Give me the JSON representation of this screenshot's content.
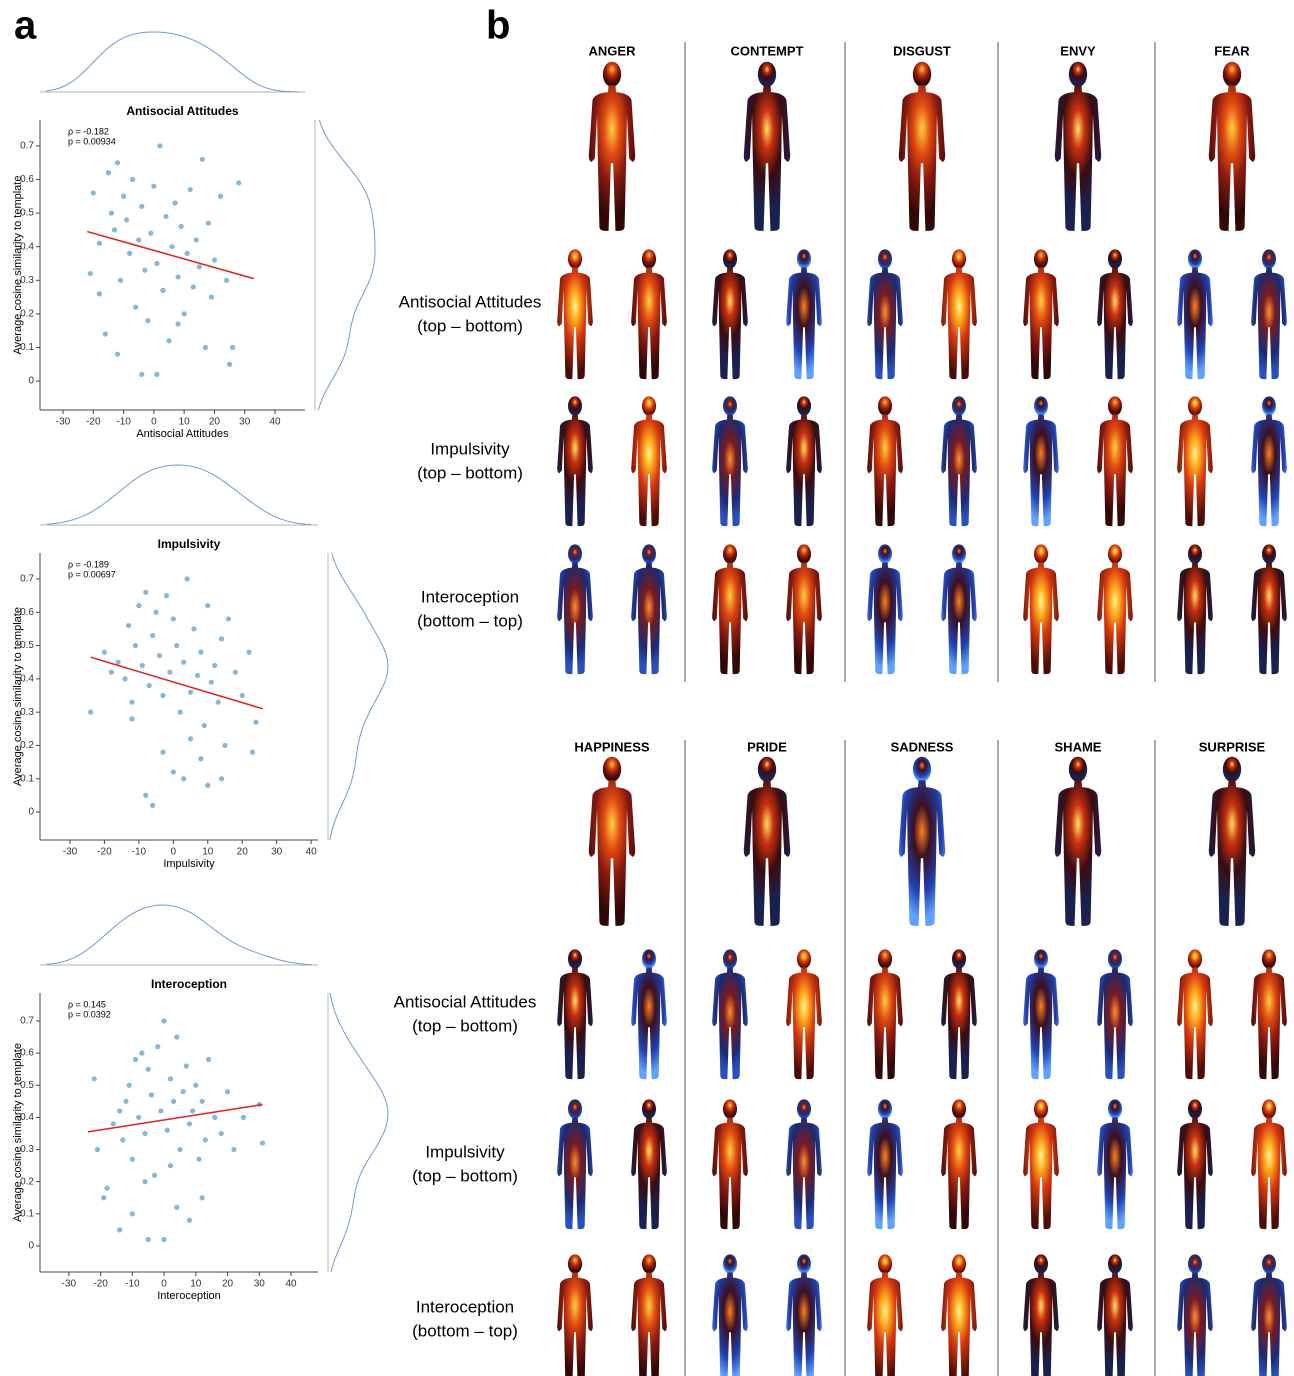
{
  "panel_a": {
    "label": "a"
  },
  "chart_data": [
    {
      "type": "scatter",
      "title": "Antisocial Attitudes",
      "x_label": "Antisocial Attitudes",
      "y_label": "Average cosine similarity to template",
      "annotations": [
        "ρ = -0.182",
        "p = 0.00934"
      ],
      "x": [
        -20,
        -18,
        -15,
        -14,
        -13,
        -12,
        -11,
        -10,
        -9,
        -8,
        -7,
        -6,
        -5,
        -4,
        -3,
        -2,
        -1,
        0,
        1,
        2,
        3,
        4,
        5,
        6,
        7,
        8,
        9,
        10,
        11,
        12,
        13,
        14,
        15,
        16,
        17,
        18,
        19,
        20,
        22,
        24,
        25,
        26,
        28,
        -16,
        -12,
        -4,
        1,
        -18,
        -21,
        8
      ],
      "y": [
        0.56,
        0.41,
        0.62,
        0.5,
        0.45,
        0.65,
        0.3,
        0.55,
        0.48,
        0.38,
        0.6,
        0.22,
        0.42,
        0.52,
        0.33,
        0.18,
        0.44,
        0.58,
        0.35,
        0.7,
        0.27,
        0.49,
        0.12,
        0.4,
        0.53,
        0.31,
        0.46,
        0.2,
        0.38,
        0.57,
        0.28,
        0.42,
        0.34,
        0.66,
        0.1,
        0.47,
        0.25,
        0.36,
        0.55,
        0.3,
        0.05,
        0.1,
        0.59,
        0.14,
        0.08,
        0.02,
        0.02,
        0.26,
        0.32,
        0.17
      ],
      "color": "#86b6d8",
      "fit_line": {
        "x": [
          -22,
          33
        ],
        "y": [
          0.445,
          0.305
        ],
        "color": "#e0201c"
      },
      "xlim": [
        -37.6,
        49.9
      ],
      "ylim": [
        -0.086,
        0.777
      ],
      "xticks": [
        -30,
        -20,
        -10,
        0,
        10,
        20,
        30,
        40
      ],
      "yticks": [
        0,
        0.1,
        0.2,
        0.3,
        0.4,
        0.5,
        0.6,
        0.7
      ]
    },
    {
      "type": "scatter",
      "title": "Impulsivity",
      "x_label": "Impulsivity",
      "y_label": "Average cosine similarity to template",
      "annotations": [
        "ρ = -0.189",
        "p = 0.00697"
      ],
      "x": [
        -24,
        -20,
        -18,
        -16,
        -14,
        -13,
        -12,
        -11,
        -10,
        -9,
        -8,
        -7,
        -6,
        -5,
        -4,
        -3,
        -2,
        -1,
        0,
        1,
        2,
        3,
        4,
        5,
        6,
        7,
        8,
        9,
        10,
        11,
        12,
        13,
        14,
        15,
        16,
        18,
        20,
        22,
        23,
        24,
        -8,
        -6,
        -3,
        0,
        3,
        5,
        8,
        10,
        -12,
        14
      ],
      "y": [
        0.3,
        0.48,
        0.42,
        0.45,
        0.4,
        0.56,
        0.33,
        0.5,
        0.62,
        0.44,
        0.66,
        0.38,
        0.53,
        0.6,
        0.47,
        0.35,
        0.65,
        0.42,
        0.58,
        0.5,
        0.3,
        0.45,
        0.7,
        0.36,
        0.55,
        0.41,
        0.48,
        0.26,
        0.62,
        0.39,
        0.44,
        0.33,
        0.52,
        0.2,
        0.58,
        0.42,
        0.35,
        0.48,
        0.18,
        0.27,
        0.05,
        0.02,
        0.18,
        0.12,
        0.1,
        0.22,
        0.16,
        0.08,
        0.28,
        0.1
      ],
      "color": "#86b6d8",
      "fit_line": {
        "x": [
          -24,
          26
        ],
        "y": [
          0.465,
          0.31
        ],
        "color": "#e0201c"
      },
      "xlim": [
        -38.7,
        42.0
      ],
      "ylim": [
        -0.084,
        0.778
      ],
      "xticks": [
        -30,
        -20,
        -10,
        0,
        10,
        20,
        30,
        40
      ],
      "yticks": [
        0,
        0.1,
        0.2,
        0.3,
        0.4,
        0.5,
        0.6,
        0.7
      ]
    },
    {
      "type": "scatter",
      "title": "Interoception",
      "x_label": "Interoception",
      "y_label": "Average cosine similarity to template",
      "annotations": [
        "ρ = 0.145",
        "p = 0.0392"
      ],
      "x": [
        -22,
        -21,
        -19,
        -18,
        -16,
        -14,
        -13,
        -12,
        -11,
        -10,
        -9,
        -8,
        -7,
        -6,
        -5,
        -4,
        -3,
        -2,
        -1,
        0,
        1,
        2,
        3,
        4,
        5,
        6,
        7,
        8,
        9,
        10,
        11,
        12,
        13,
        14,
        16,
        18,
        20,
        22,
        25,
        30,
        31,
        -14,
        -10,
        -5,
        0,
        4,
        8,
        12,
        -6,
        2
      ],
      "y": [
        0.52,
        0.3,
        0.15,
        0.18,
        0.38,
        0.42,
        0.33,
        0.45,
        0.5,
        0.27,
        0.58,
        0.4,
        0.6,
        0.35,
        0.55,
        0.47,
        0.22,
        0.62,
        0.42,
        0.7,
        0.36,
        0.52,
        0.45,
        0.65,
        0.3,
        0.48,
        0.56,
        0.38,
        0.42,
        0.5,
        0.27,
        0.45,
        0.33,
        0.58,
        0.4,
        0.35,
        0.48,
        0.3,
        0.4,
        0.44,
        0.32,
        0.05,
        0.1,
        0.02,
        0.02,
        0.12,
        0.08,
        0.15,
        0.2,
        0.25
      ],
      "color": "#86b6d8",
      "fit_line": {
        "x": [
          -24,
          31
        ],
        "y": [
          0.355,
          0.44
        ],
        "color": "#e0201c"
      },
      "xlim": [
        -39.1,
        48.5
      ],
      "ylim": [
        -0.081,
        0.787
      ],
      "xticks": [
        -30,
        -20,
        -10,
        0,
        10,
        20,
        30,
        40
      ],
      "yticks": [
        0,
        0.1,
        0.2,
        0.3,
        0.4,
        0.5,
        0.6,
        0.7
      ]
    }
  ],
  "panel_b": {
    "label": "b",
    "groups": [
      {
        "emotions": [
          "ANGER",
          "CONTEMPT",
          "DISGUST",
          "ENVY",
          "FEAR"
        ],
        "rows": [
          [
            "Antisocial Attitudes",
            "(top – bottom)"
          ],
          [
            "Impulsivity",
            "(top – bottom)"
          ],
          [
            "Interoception",
            "(bottom – top)"
          ]
        ]
      },
      {
        "emotions": [
          "HAPPINESS",
          "PRIDE",
          "SADNESS",
          "SHAME",
          "SURPRISE"
        ],
        "rows": [
          [
            "Antisocial Attitudes",
            "(top – bottom)"
          ],
          [
            "Impulsivity",
            "(top – bottom)"
          ],
          [
            "Interoception",
            "(bottom – top)"
          ]
        ]
      }
    ]
  }
}
